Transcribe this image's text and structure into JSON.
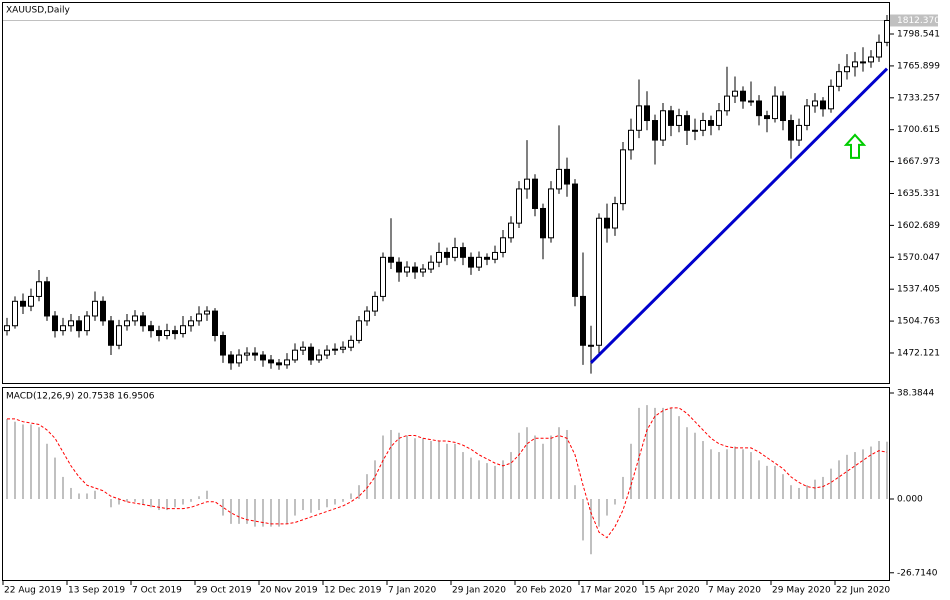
{
  "chart_data": {
    "type": "candlestick",
    "title": "XAUUSD,Daily",
    "up_color": "#ffffff",
    "down_color": "#000000",
    "outline_color": "#000000",
    "categories": [
      "22 Aug 2019",
      null,
      null,
      null,
      null,
      null,
      null,
      null,
      "13 Sep 2019",
      null,
      null,
      null,
      null,
      null,
      null,
      null,
      "7 Oct 2019",
      null,
      null,
      null,
      null,
      null,
      null,
      null,
      "29 Oct 2019",
      null,
      null,
      null,
      null,
      null,
      null,
      null,
      "20 Nov 2019",
      null,
      null,
      null,
      null,
      null,
      null,
      null,
      "12 Dec 2019",
      null,
      null,
      null,
      null,
      null,
      null,
      null,
      "7 Jan 2020",
      null,
      null,
      null,
      null,
      null,
      null,
      null,
      "29 Jan 2020",
      null,
      null,
      null,
      null,
      null,
      null,
      null,
      "20 Feb 2020",
      null,
      null,
      null,
      null,
      null,
      null,
      null,
      "17 Mar 2020",
      null,
      null,
      null,
      null,
      null,
      null,
      null,
      "15 Apr 2020",
      null,
      null,
      null,
      null,
      null,
      null,
      null,
      "7 May 2020",
      null,
      null,
      null,
      null,
      null,
      null,
      null,
      "29 May 2020",
      null,
      null,
      null,
      null,
      null,
      null,
      null,
      "22 Jun 2020",
      null,
      null,
      null,
      null,
      null,
      null
    ],
    "ohlc": [
      [
        1495,
        1508,
        1490,
        1500
      ],
      [
        1500,
        1530,
        1497,
        1525
      ],
      [
        1525,
        1533,
        1512,
        1520
      ],
      [
        1520,
        1538,
        1515,
        1530
      ],
      [
        1530,
        1557,
        1525,
        1545
      ],
      [
        1545,
        1550,
        1505,
        1510
      ],
      [
        1510,
        1515,
        1488,
        1495
      ],
      [
        1495,
        1508,
        1490,
        1500
      ],
      [
        1500,
        1512,
        1494,
        1505
      ],
      [
        1505,
        1510,
        1488,
        1495
      ],
      [
        1495,
        1515,
        1490,
        1510
      ],
      [
        1510,
        1535,
        1505,
        1525
      ],
      [
        1525,
        1530,
        1500,
        1505
      ],
      [
        1505,
        1510,
        1470,
        1480
      ],
      [
        1480,
        1506,
        1476,
        1500
      ],
      [
        1500,
        1512,
        1495,
        1505
      ],
      [
        1505,
        1516,
        1500,
        1510
      ],
      [
        1510,
        1514,
        1494,
        1500
      ],
      [
        1500,
        1505,
        1488,
        1495
      ],
      [
        1495,
        1500,
        1484,
        1490
      ],
      [
        1490,
        1502,
        1486,
        1495
      ],
      [
        1495,
        1500,
        1486,
        1492
      ],
      [
        1492,
        1510,
        1488,
        1500
      ],
      [
        1500,
        1510,
        1494,
        1505
      ],
      [
        1505,
        1520,
        1500,
        1512
      ],
      [
        1512,
        1520,
        1505,
        1515
      ],
      [
        1515,
        1518,
        1484,
        1490
      ],
      [
        1490,
        1494,
        1462,
        1470
      ],
      [
        1470,
        1474,
        1455,
        1462
      ],
      [
        1462,
        1476,
        1458,
        1470
      ],
      [
        1470,
        1478,
        1464,
        1472
      ],
      [
        1472,
        1478,
        1464,
        1470
      ],
      [
        1470,
        1474,
        1458,
        1465
      ],
      [
        1465,
        1470,
        1456,
        1462
      ],
      [
        1462,
        1466,
        1455,
        1460
      ],
      [
        1460,
        1472,
        1456,
        1465
      ],
      [
        1465,
        1482,
        1462,
        1475
      ],
      [
        1475,
        1484,
        1470,
        1478
      ],
      [
        1478,
        1482,
        1460,
        1465
      ],
      [
        1465,
        1476,
        1462,
        1470
      ],
      [
        1470,
        1480,
        1466,
        1475
      ],
      [
        1475,
        1482,
        1470,
        1476
      ],
      [
        1476,
        1484,
        1472,
        1478
      ],
      [
        1478,
        1490,
        1474,
        1485
      ],
      [
        1485,
        1510,
        1482,
        1505
      ],
      [
        1505,
        1520,
        1500,
        1515
      ],
      [
        1515,
        1535,
        1510,
        1530
      ],
      [
        1530,
        1575,
        1525,
        1570
      ],
      [
        1570,
        1610,
        1558,
        1565
      ],
      [
        1565,
        1570,
        1545,
        1555
      ],
      [
        1555,
        1566,
        1550,
        1560
      ],
      [
        1560,
        1565,
        1548,
        1555
      ],
      [
        1555,
        1563,
        1550,
        1558
      ],
      [
        1558,
        1572,
        1554,
        1565
      ],
      [
        1565,
        1585,
        1560,
        1575
      ],
      [
        1575,
        1580,
        1562,
        1570
      ],
      [
        1570,
        1590,
        1566,
        1580
      ],
      [
        1580,
        1585,
        1562,
        1570
      ],
      [
        1570,
        1575,
        1552,
        1560
      ],
      [
        1560,
        1576,
        1556,
        1570
      ],
      [
        1570,
        1574,
        1562,
        1568
      ],
      [
        1568,
        1582,
        1564,
        1575
      ],
      [
        1575,
        1598,
        1570,
        1590
      ],
      [
        1590,
        1612,
        1585,
        1605
      ],
      [
        1605,
        1648,
        1600,
        1640
      ],
      [
        1640,
        1690,
        1630,
        1650
      ],
      [
        1650,
        1655,
        1612,
        1620
      ],
      [
        1620,
        1625,
        1568,
        1590
      ],
      [
        1590,
        1648,
        1585,
        1640
      ],
      [
        1640,
        1705,
        1635,
        1660
      ],
      [
        1660,
        1672,
        1632,
        1645
      ],
      [
        1645,
        1650,
        1520,
        1530
      ],
      [
        1530,
        1575,
        1460,
        1480
      ],
      [
        1480,
        1500,
        1451,
        1480
      ],
      [
        1480,
        1615,
        1472,
        1610
      ],
      [
        1610,
        1625,
        1585,
        1600
      ],
      [
        1600,
        1632,
        1592,
        1625
      ],
      [
        1625,
        1688,
        1618,
        1680
      ],
      [
        1680,
        1712,
        1670,
        1700
      ],
      [
        1700,
        1752,
        1692,
        1725
      ],
      [
        1725,
        1740,
        1700,
        1710
      ],
      [
        1710,
        1716,
        1665,
        1690
      ],
      [
        1690,
        1728,
        1684,
        1720
      ],
      [
        1720,
        1725,
        1694,
        1705
      ],
      [
        1705,
        1722,
        1698,
        1715
      ],
      [
        1715,
        1720,
        1685,
        1700
      ],
      [
        1700,
        1712,
        1690,
        1700
      ],
      [
        1700,
        1718,
        1694,
        1710
      ],
      [
        1710,
        1715,
        1695,
        1705
      ],
      [
        1705,
        1728,
        1700,
        1720
      ],
      [
        1720,
        1765,
        1715,
        1735
      ],
      [
        1735,
        1755,
        1728,
        1740
      ],
      [
        1740,
        1745,
        1722,
        1730
      ],
      [
        1730,
        1750,
        1725,
        1730
      ],
      [
        1730,
        1736,
        1705,
        1715
      ],
      [
        1715,
        1720,
        1698,
        1712
      ],
      [
        1712,
        1745,
        1708,
        1735
      ],
      [
        1735,
        1740,
        1700,
        1710
      ],
      [
        1710,
        1716,
        1671,
        1690
      ],
      [
        1690,
        1712,
        1684,
        1705
      ],
      [
        1705,
        1732,
        1700,
        1725
      ],
      [
        1725,
        1738,
        1718,
        1730
      ],
      [
        1730,
        1734,
        1714,
        1722
      ],
      [
        1722,
        1752,
        1718,
        1745
      ],
      [
        1745,
        1768,
        1740,
        1760
      ],
      [
        1760,
        1778,
        1752,
        1765
      ],
      [
        1765,
        1780,
        1755,
        1770
      ],
      [
        1770,
        1785,
        1760,
        1770
      ],
      [
        1770,
        1782,
        1764,
        1775
      ],
      [
        1775,
        1798,
        1770,
        1790
      ],
      [
        1790,
        1818,
        1786,
        1812.37
      ]
    ],
    "ylim": [
      1441.4,
      1831.3
    ],
    "yticks": [
      1798.541,
      1765.899,
      1733.257,
      1700.615,
      1667.973,
      1635.331,
      1602.689,
      1570.047,
      1537.405,
      1504.763,
      1472.121
    ],
    "last_price": {
      "value": 1812.37,
      "label": "1812.370",
      "color": "#c0c0c0"
    },
    "trendline": {
      "start_index": 73,
      "start_price": 1462,
      "end_index": 110,
      "end_price": 1763,
      "color": "#0000cc"
    },
    "arrow": {
      "index": 106,
      "price": 1683,
      "color": "#00cc00"
    },
    "indicator": {
      "type": "macd",
      "label": "MACD(12,26,9) 20.7538 16.9506",
      "histogram_color": "#c0c0c0",
      "signal_color": "#ff0000",
      "histogram": [
        29,
        28,
        27,
        27,
        26,
        20,
        15,
        8,
        4,
        2,
        2,
        3,
        0,
        -3,
        -2,
        -1,
        -1,
        -2,
        -3,
        -4,
        -4,
        -3,
        -2,
        -1,
        1,
        3,
        0,
        -6,
        -9,
        -9,
        -9,
        -10,
        -10,
        -10,
        -10,
        -9,
        -6,
        -4,
        -5,
        -4,
        -3,
        -2,
        -1,
        2,
        5,
        9,
        14,
        23,
        25,
        24,
        23,
        22,
        22,
        21,
        21,
        20,
        20,
        17,
        15,
        14,
        13,
        12,
        14,
        17,
        24,
        26,
        23,
        20,
        23,
        26,
        25,
        5,
        -15,
        -20,
        -10,
        -6,
        -2,
        8,
        20,
        33,
        34,
        33,
        33,
        33,
        30,
        26,
        24,
        21,
        18,
        17,
        18,
        19,
        18,
        17,
        14,
        12,
        12,
        9,
        5,
        4,
        5,
        7,
        8,
        11,
        14,
        16,
        17,
        18,
        19,
        21,
        20.7538
      ],
      "signal": [
        29,
        29,
        28,
        27.5,
        27,
        25,
        22,
        17,
        12,
        8,
        5,
        4,
        3,
        1,
        0,
        -1,
        -1.5,
        -2,
        -2.5,
        -3,
        -3.5,
        -3.5,
        -3.5,
        -3,
        -2,
        -1,
        -1,
        -3,
        -5,
        -6.5,
        -7.5,
        -8,
        -8.5,
        -9,
        -9,
        -9,
        -8.5,
        -7.5,
        -6.5,
        -5.5,
        -4.5,
        -3.5,
        -2.5,
        -1,
        1,
        4,
        8,
        14,
        19,
        22,
        23,
        23,
        22,
        21.5,
        21,
        21,
        20.5,
        19.5,
        18,
        16,
        14.5,
        13,
        12,
        13,
        16,
        20,
        22,
        22,
        22,
        23,
        22,
        16,
        5,
        -5,
        -12,
        -14,
        -10,
        -4,
        5,
        15,
        25,
        30,
        32,
        33,
        33,
        31,
        28,
        25,
        22,
        20,
        19,
        18.5,
        18.5,
        18.5,
        17,
        15,
        13,
        11,
        8,
        6,
        4.5,
        4,
        4.5,
        6,
        8,
        10,
        12,
        14,
        16,
        17.5,
        16.9506
      ],
      "ylim": [
        -29.33,
        40.56
      ],
      "yticks": [
        38.3844,
        {
          "value": 0,
          "label": "0.000"
        },
        {
          "value": -26.714,
          "label": "-26.7140"
        }
      ]
    }
  }
}
